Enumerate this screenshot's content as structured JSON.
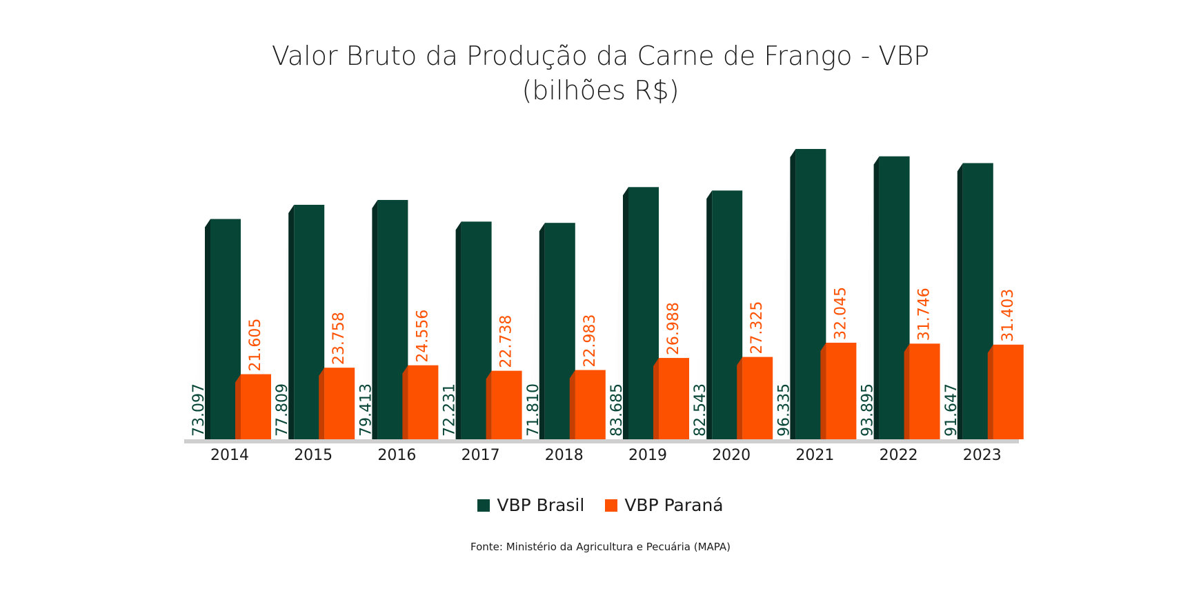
{
  "title_line1": "Valor Bruto da Produção da Carne de Frango - VBP",
  "title_line2": "(bilhões R$)",
  "source": "Fonte: Ministério da Agricultura e Pecuária (MAPA)",
  "colors": {
    "brasil": "#074536",
    "brasil_side": "#052b22",
    "parana": "#fe5100",
    "parana_side": "#c63f00",
    "baseline": "#cfcfcf"
  },
  "chart_data": {
    "type": "bar",
    "categories": [
      "2014",
      "2015",
      "2016",
      "2017",
      "2018",
      "2019",
      "2020",
      "2021",
      "2022",
      "2023"
    ],
    "series": [
      {
        "name": "VBP Brasil",
        "values": [
          73.097,
          77.809,
          79.413,
          72.231,
          71.81,
          83.685,
          82.543,
          96.335,
          93.895,
          91.647
        ],
        "labels": [
          "73.097",
          "77.809",
          "79.413",
          "72.231",
          "71.810",
          "83.685",
          "82.543",
          "96.335",
          "93.895",
          "91.647"
        ]
      },
      {
        "name": "VBP Paraná",
        "values": [
          21.605,
          23.758,
          24.556,
          22.738,
          22.983,
          26.988,
          27.325,
          32.045,
          31.746,
          31.403
        ],
        "labels": [
          "21.605",
          "23.758",
          "24.556",
          "22.738",
          "22.983",
          "26.988",
          "27.325",
          "32.045",
          "31.746",
          "31.403"
        ]
      }
    ],
    "title": "Valor Bruto da Produção da Carne de Frango - VBP (bilhões R$)",
    "legend": "bottom",
    "grid": false,
    "ylim": [
      0,
      100
    ]
  }
}
